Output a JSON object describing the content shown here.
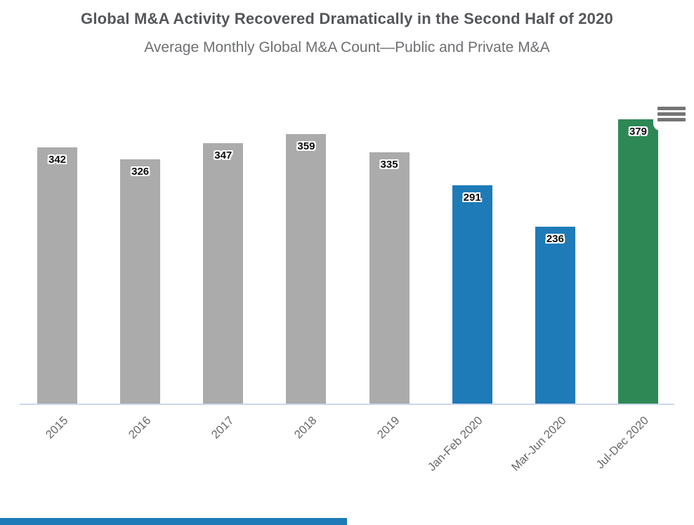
{
  "chart": {
    "title": "Global M&A Activity Recovered Dramatically in the Second Half of 2020",
    "subtitle": "Average Monthly Global M&A Count—Public and Private M&A"
  },
  "chart_data": {
    "type": "bar",
    "title": "Global M&A Activity Recovered Dramatically in the Second Half of 2020",
    "subtitle": "Average Monthly Global M&A Count—Public and Private M&A",
    "categories": [
      "2015",
      "2016",
      "2017",
      "2018",
      "2019",
      "Jan-Feb 2020",
      "Mar-Jun 2020",
      "Jul-Dec 2020"
    ],
    "series": [
      {
        "name": "Average Monthly Global M&A Count",
        "values": [
          342,
          326,
          347,
          359,
          335,
          291,
          236,
          379
        ]
      }
    ],
    "data_labels": [
      342,
      326,
      347,
      359,
      335,
      291,
      236,
      379
    ],
    "bar_colors": [
      "#ababab",
      "#ababab",
      "#ababab",
      "#ababab",
      "#ababab",
      "#1e7bb8",
      "#1e7bb8",
      "#2e8855"
    ],
    "color_legend": {
      "past_years_gray": "#ababab",
      "first_half_2020_blue": "#1e7bb8",
      "second_half_2020_green": "#2e8855"
    },
    "xlabel": "",
    "ylabel": "",
    "ylim": [
      0,
      398
    ],
    "x_label_rotation": -45,
    "grid": "off",
    "legend": "none",
    "axis_line_color": "#ccd6eb"
  },
  "context_menu": {
    "icon": "hamburger-icon",
    "color": "#757575"
  },
  "footer_bar": {
    "color": "#1e7bb8"
  }
}
